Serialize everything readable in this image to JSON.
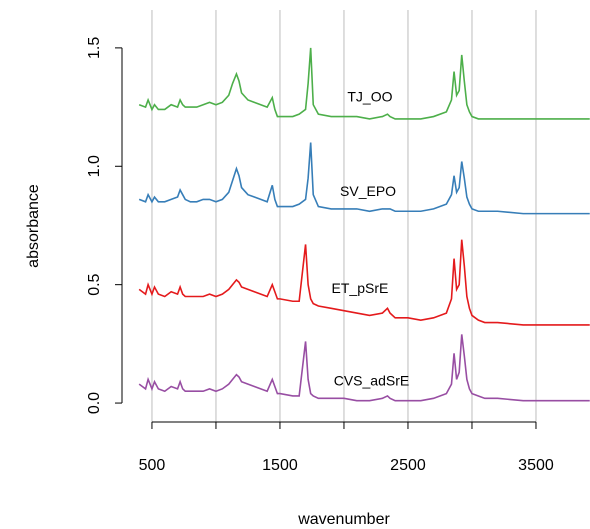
{
  "chart_data": {
    "type": "line",
    "xlabel": "wavenumber",
    "ylabel": "absorbance",
    "x": [
      400,
      450,
      470,
      500,
      520,
      550,
      600,
      650,
      700,
      720,
      740,
      760,
      800,
      850,
      900,
      950,
      1000,
      1050,
      1100,
      1130,
      1160,
      1180,
      1200,
      1250,
      1300,
      1350,
      1400,
      1440,
      1460,
      1480,
      1500,
      1600,
      1650,
      1700,
      1720,
      1740,
      1760,
      1800,
      1900,
      2000,
      2100,
      2200,
      2300,
      2340,
      2360,
      2400,
      2500,
      2600,
      2700,
      2800,
      2840,
      2860,
      2880,
      2900,
      2920,
      2940,
      2960,
      2980,
      3000,
      3050,
      3100,
      3200,
      3400,
      3600,
      3800,
      3920
    ],
    "series": [
      {
        "name": "CVS_adSrE",
        "color": "#984ea3",
        "values": [
          0.08,
          0.06,
          0.1,
          0.06,
          0.09,
          0.06,
          0.05,
          0.07,
          0.06,
          0.09,
          0.06,
          0.05,
          0.05,
          0.05,
          0.05,
          0.06,
          0.05,
          0.06,
          0.08,
          0.1,
          0.12,
          0.11,
          0.09,
          0.08,
          0.07,
          0.06,
          0.05,
          0.1,
          0.07,
          0.04,
          0.04,
          0.03,
          0.03,
          0.26,
          0.1,
          0.04,
          0.03,
          0.02,
          0.02,
          0.02,
          0.01,
          0.01,
          0.02,
          0.03,
          0.02,
          0.01,
          0.01,
          0.01,
          0.02,
          0.04,
          0.08,
          0.21,
          0.1,
          0.13,
          0.29,
          0.2,
          0.1,
          0.06,
          0.04,
          0.03,
          0.02,
          0.02,
          0.01,
          0.01,
          0.01,
          0.01
        ]
      },
      {
        "name": "ET_pSrE",
        "color": "#e41a1c",
        "values": [
          0.48,
          0.46,
          0.5,
          0.46,
          0.49,
          0.46,
          0.45,
          0.47,
          0.46,
          0.49,
          0.46,
          0.45,
          0.45,
          0.45,
          0.45,
          0.46,
          0.45,
          0.46,
          0.48,
          0.5,
          0.52,
          0.51,
          0.49,
          0.48,
          0.47,
          0.46,
          0.45,
          0.5,
          0.47,
          0.44,
          0.44,
          0.43,
          0.43,
          0.67,
          0.5,
          0.44,
          0.42,
          0.41,
          0.4,
          0.39,
          0.38,
          0.37,
          0.38,
          0.4,
          0.38,
          0.36,
          0.36,
          0.35,
          0.36,
          0.38,
          0.44,
          0.61,
          0.48,
          0.5,
          0.69,
          0.58,
          0.45,
          0.4,
          0.37,
          0.35,
          0.34,
          0.34,
          0.33,
          0.33,
          0.33,
          0.33
        ]
      },
      {
        "name": "SV_EPO",
        "color": "#377eb8",
        "values": [
          0.86,
          0.85,
          0.88,
          0.85,
          0.87,
          0.85,
          0.85,
          0.86,
          0.87,
          0.9,
          0.88,
          0.86,
          0.85,
          0.85,
          0.86,
          0.86,
          0.85,
          0.86,
          0.89,
          0.94,
          0.99,
          0.96,
          0.91,
          0.88,
          0.87,
          0.86,
          0.85,
          0.92,
          0.86,
          0.83,
          0.83,
          0.83,
          0.84,
          0.86,
          0.95,
          1.1,
          0.88,
          0.83,
          0.82,
          0.82,
          0.82,
          0.81,
          0.82,
          0.82,
          0.82,
          0.81,
          0.81,
          0.81,
          0.82,
          0.84,
          0.88,
          0.96,
          0.89,
          0.91,
          1.02,
          0.95,
          0.87,
          0.84,
          0.82,
          0.81,
          0.81,
          0.81,
          0.8,
          0.8,
          0.8,
          0.8
        ]
      },
      {
        "name": "TJ_OO",
        "color": "#4daf4a",
        "values": [
          1.26,
          1.25,
          1.28,
          1.24,
          1.26,
          1.24,
          1.24,
          1.26,
          1.25,
          1.28,
          1.26,
          1.25,
          1.25,
          1.25,
          1.26,
          1.27,
          1.26,
          1.27,
          1.3,
          1.35,
          1.39,
          1.36,
          1.31,
          1.28,
          1.27,
          1.26,
          1.25,
          1.29,
          1.24,
          1.21,
          1.21,
          1.21,
          1.22,
          1.24,
          1.35,
          1.5,
          1.26,
          1.22,
          1.21,
          1.21,
          1.21,
          1.2,
          1.21,
          1.22,
          1.21,
          1.2,
          1.2,
          1.2,
          1.21,
          1.23,
          1.28,
          1.4,
          1.3,
          1.32,
          1.47,
          1.36,
          1.26,
          1.23,
          1.21,
          1.2,
          1.2,
          1.2,
          1.2,
          1.2,
          1.2,
          1.2
        ]
      }
    ],
    "xlim": [
      266,
      3922
    ],
    "ylim": [
      -0.08,
      1.66
    ],
    "xticks": [
      500,
      1500,
      2500,
      3500
    ],
    "xgrid": [
      500,
      1000,
      1500,
      2000,
      2500,
      3000,
      3500
    ],
    "yticks": [
      {
        "value": 0,
        "label": "0.0"
      },
      0.5,
      {
        "value": 1,
        "label": "1.0"
      },
      1.5
    ],
    "grid": true
  }
}
